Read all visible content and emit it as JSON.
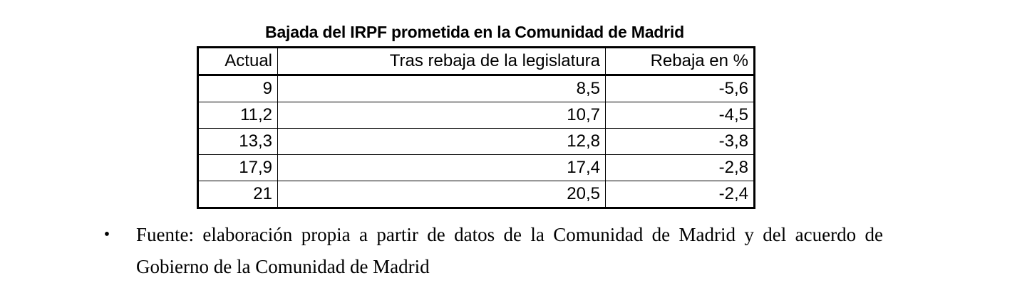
{
  "table": {
    "title": "Bajada del IRPF prometida en la Comunidad de Madrid",
    "headers": [
      "Actual",
      "Tras rebaja de la legislatura",
      "Rebaja en %"
    ],
    "rows": [
      [
        "9",
        "8,5",
        "-5,6"
      ],
      [
        "11,2",
        "10,7",
        "-4,5"
      ],
      [
        "13,3",
        "12,8",
        "-3,8"
      ],
      [
        "17,9",
        "17,4",
        "-2,8"
      ],
      [
        "21",
        "20,5",
        "-2,4"
      ]
    ]
  },
  "note": {
    "bullet": "•",
    "text": "Fuente: elaboración propia a partir de datos de la Comunidad de Madrid y del acuerdo de Gobierno de la Comunidad de Madrid"
  }
}
